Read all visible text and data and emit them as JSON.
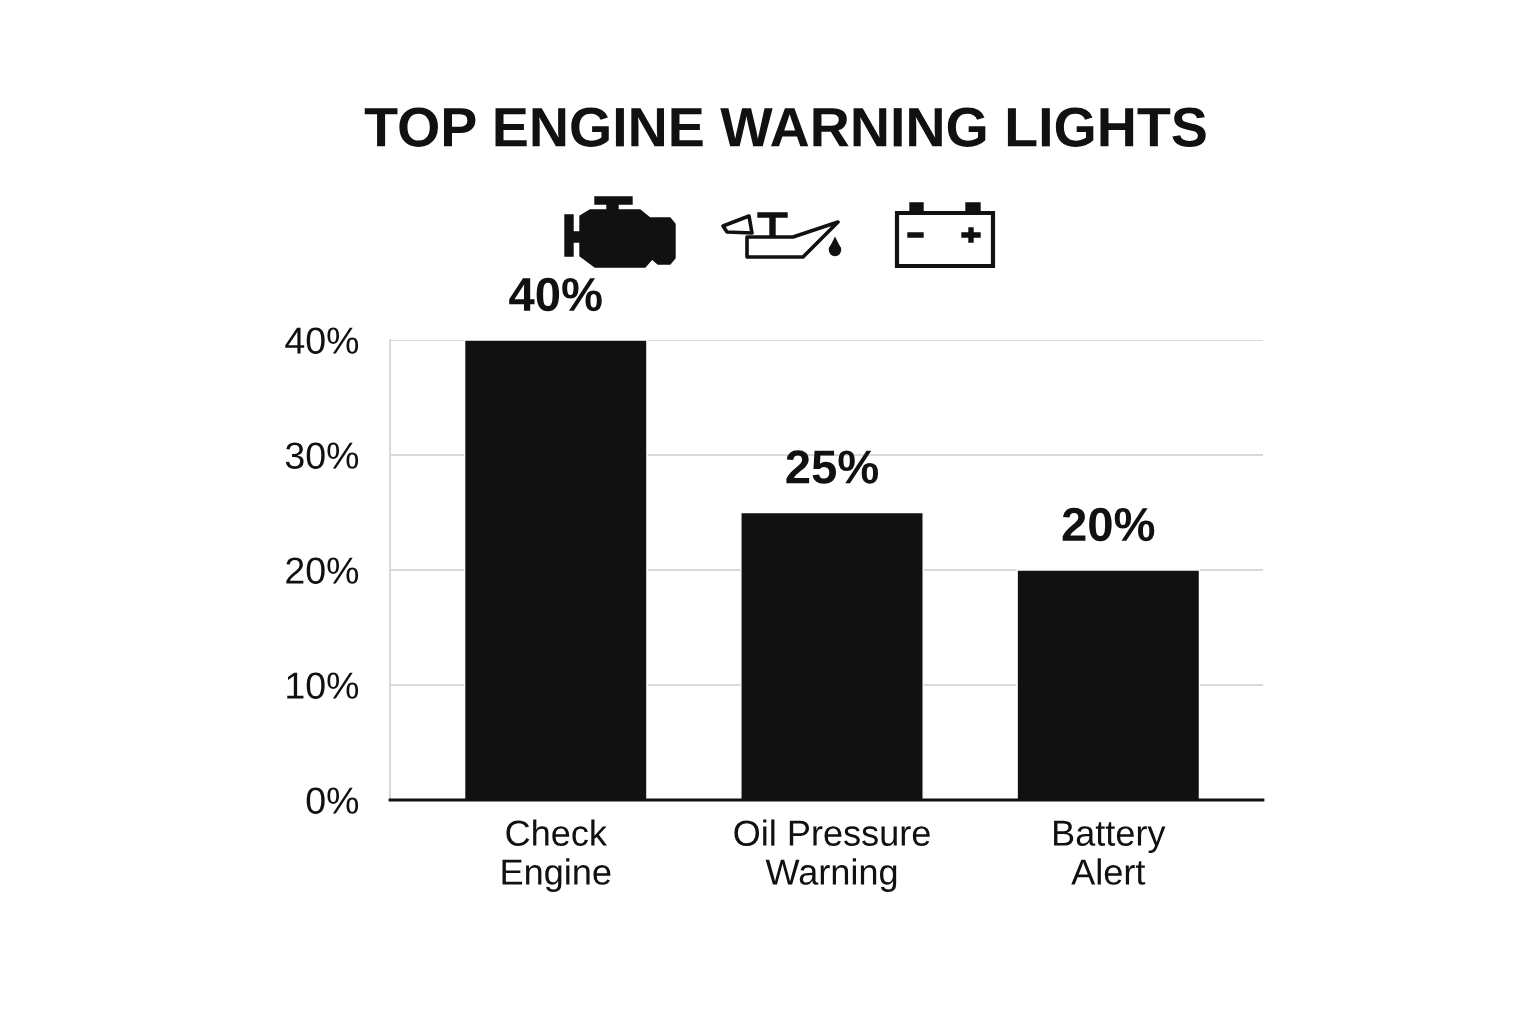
{
  "chart_data": {
    "type": "bar",
    "title": "TOP ENGINE WARNING LIGHTS",
    "categories": [
      "Check\nEngine",
      "Oil Pressure\nWarning",
      "Battery\nAlert"
    ],
    "values": [
      40,
      25,
      20
    ],
    "value_labels": [
      "40%",
      "25%",
      "20%"
    ],
    "color": "#111111",
    "ylim": [
      0,
      40
    ],
    "yticks": [
      {
        "value": 0,
        "label": "0%"
      },
      {
        "value": 10,
        "label": "10%"
      },
      {
        "value": 20,
        "label": "20%"
      },
      {
        "value": 30,
        "label": "30%"
      },
      {
        "value": 40,
        "label": "40%"
      }
    ],
    "grid": "y"
  }
}
